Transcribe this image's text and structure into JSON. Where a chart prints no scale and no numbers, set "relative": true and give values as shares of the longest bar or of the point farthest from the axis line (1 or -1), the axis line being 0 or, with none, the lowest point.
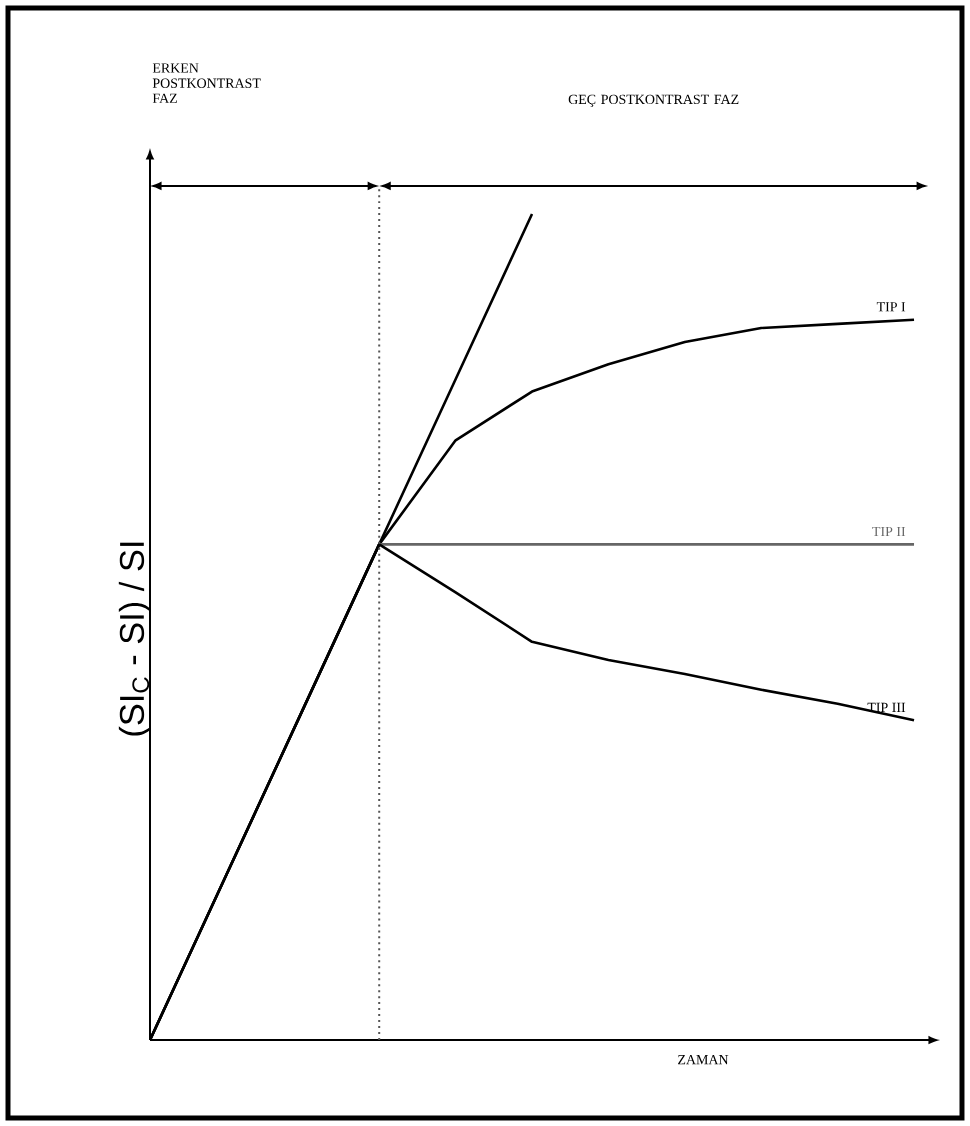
{
  "chart_data": {
    "type": "line",
    "relative": true,
    "xlabel": "ZAMAN",
    "ylabel": "(SI$_{C}$ - SI) / SI",
    "categories": [
      null,
      null,
      null,
      null,
      null,
      null,
      null,
      null,
      null,
      null,
      null
    ],
    "annotations": [
      "ERKEN POSTKONTRAST FAZ",
      "GEÇ POSTKONTRAST FAZ"
    ],
    "series": [
      {
        "color": "#000000",
        "values": [
          0,
          0.2,
          0.4,
          0.6,
          0.8,
          1.0,
          null,
          null,
          null,
          null,
          null
        ]
      },
      {
        "name": "TIP I",
        "color": "#000000",
        "values": [
          0,
          0.2,
          0.4,
          0.6,
          0.726,
          0.785,
          0.818,
          0.845,
          0.862,
          0.867,
          0.872
        ]
      },
      {
        "name": "TIP II",
        "color": "#666666",
        "values": [
          null,
          null,
          null,
          0.6,
          0.6,
          0.6,
          0.6,
          0.6,
          0.6,
          0.6,
          0.6
        ]
      },
      {
        "name": "TIP III",
        "color": "#000000",
        "values": [
          0,
          0.2,
          0.4,
          0.6,
          0.542,
          0.482,
          0.46,
          0.443,
          0.424,
          0.407,
          0.387
        ]
      }
    ]
  }
}
